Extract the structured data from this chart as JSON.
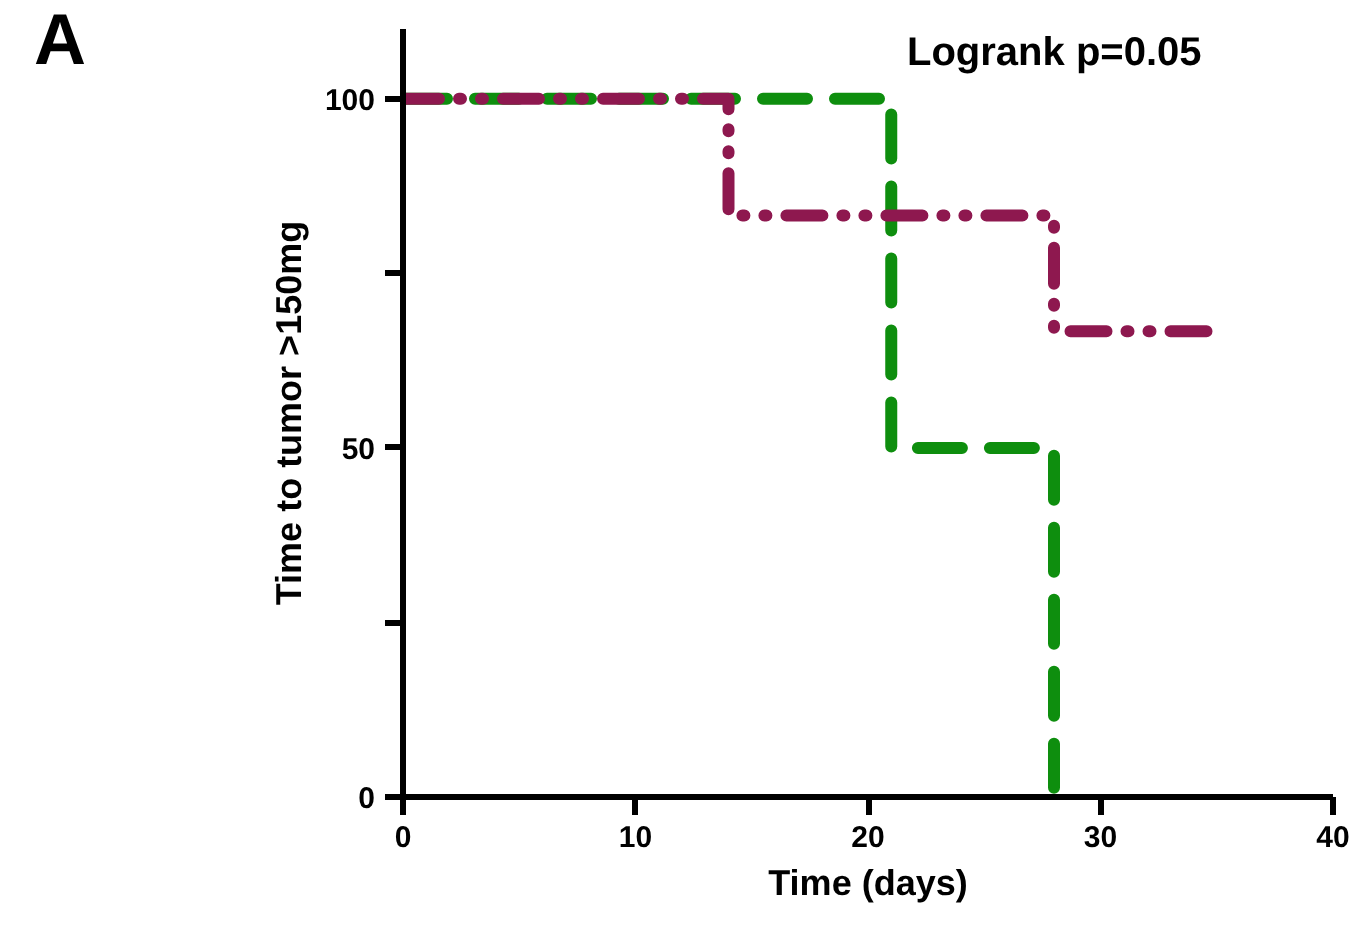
{
  "chart_data": {
    "type": "step",
    "xlabel": "Time (days)",
    "ylabel": "Time to tumor >150mg",
    "annotations": [
      "A",
      "Logrank p=0.05"
    ],
    "xlim": [
      0,
      40
    ],
    "xticks": [
      0,
      10,
      20,
      30,
      40
    ],
    "ylim": [
      0,
      110
    ],
    "yticks": [
      0,
      {
        "value": 25,
        "label": null
      },
      50,
      {
        "value": 75,
        "label": null
      },
      100
    ],
    "grid": false,
    "series": [
      {
        "color": "#0e8e0e",
        "x": [
          0,
          21,
          28
        ],
        "values": [
          100,
          50,
          0
        ],
        "line_style": "dashed"
      },
      {
        "color": "#8e184f",
        "x": [
          0,
          14,
          28,
          35
        ],
        "values": [
          100,
          83.3,
          66.7,
          66.7
        ],
        "line_style": "dotted"
      }
    ]
  }
}
